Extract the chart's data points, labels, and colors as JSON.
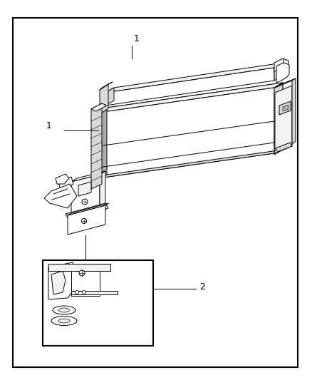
{
  "background_color": "#ffffff",
  "border_color": "#000000",
  "line_color": "#000000",
  "text_color": "#000000",
  "label1_text": "1",
  "label2_text": "2",
  "fig_width": 4.38,
  "fig_height": 5.33,
  "dpi": 100,
  "fill_white": "#ffffff",
  "fill_light": "#f2f2f2",
  "fill_mid": "#d8d8d8",
  "fill_dark": "#aaaaaa",
  "fill_darkest": "#888888"
}
